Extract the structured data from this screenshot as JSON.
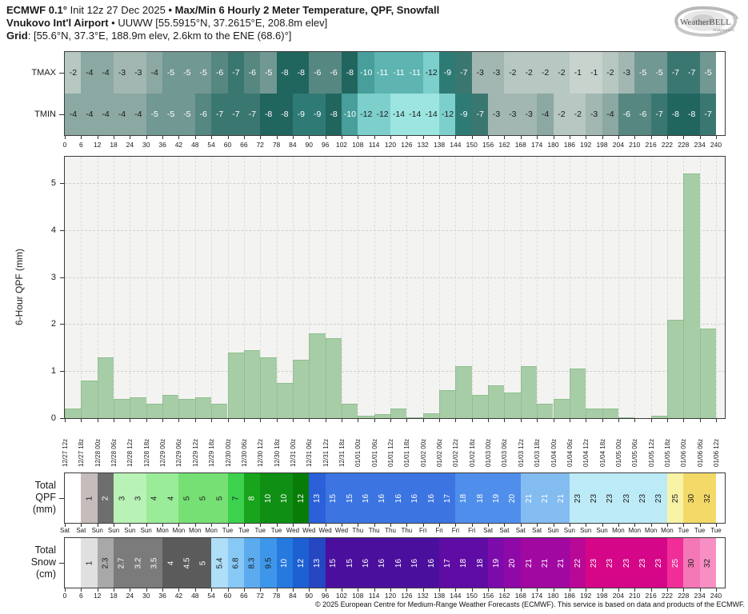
{
  "header": {
    "line1": {
      "bold_left": "ECMWF 0.1°",
      "regular": " Init 12z 27 Dec 2025 ",
      "bold_right": "• Max/Min 6 Hourly 2 Meter Temperature, QPF, Snowfall"
    },
    "line2": {
      "bold": "Vnukovo Int'l Airport",
      "regular": " • UUWW [55.5915°N, 37.2615°E, 208.8m elev]"
    },
    "line3": {
      "bold": "Grid",
      "regular": ": [55.6°N, 37.3°E, 188.9m elev, 2.6km to the ENE (68.6)°]"
    }
  },
  "logo": {
    "brand": "WeatherBELL",
    "sub": "Analytics LLC"
  },
  "footer": "© 2025 European Centre for Medium-Range Weather Forecasts (ECMWF). This service is based on data and products of the ECMWF.",
  "chart_data": [
    {
      "type": "heatmap",
      "name": "temperature",
      "rows": [
        {
          "label": "TMAX",
          "values": [
            -2,
            -4,
            -4,
            -3,
            -3,
            -4,
            -5,
            -5,
            -5,
            -6,
            -7,
            -6,
            -5,
            -8,
            -8,
            -6,
            -6,
            -8,
            -10,
            -11,
            -11,
            -11,
            -12,
            -9,
            -7,
            -3,
            -3,
            -2,
            -2,
            -2,
            -2,
            -1,
            -1,
            -2,
            -3,
            -5,
            -5,
            -7,
            -7,
            -5
          ]
        },
        {
          "label": "TMIN",
          "values": [
            -4,
            -4,
            -4,
            -4,
            -4,
            -5,
            -5,
            -5,
            -6,
            -7,
            -7,
            -7,
            -8,
            -8,
            -9,
            -9,
            -8,
            -10,
            -12,
            -12,
            -14,
            -14,
            -14,
            -12,
            -9,
            -7,
            -3,
            -3,
            -3,
            -4,
            -2,
            -2,
            -3,
            -4,
            -6,
            -6,
            -7,
            -8,
            -8,
            -7
          ]
        }
      ],
      "x_ticks": [
        0,
        6,
        12,
        18,
        24,
        30,
        36,
        42,
        48,
        54,
        60,
        66,
        72,
        78,
        84,
        90,
        96,
        102,
        108,
        114,
        120,
        126,
        132,
        138,
        144,
        150,
        156,
        162,
        168,
        174,
        180,
        186,
        192,
        198,
        204,
        210,
        216,
        222,
        228,
        234,
        240
      ],
      "colormap": {
        "-1": [
          "#c8d3cd",
          "#1a1a1a"
        ],
        "-2": [
          "#b7c7c2",
          "#1a1a1a"
        ],
        "-3": [
          "#a2b7b1",
          "#1a1a1a"
        ],
        "-4": [
          "#8ca8a2",
          "#1a1a1a"
        ],
        "-5": [
          "#729893",
          "#ffffff"
        ],
        "-6": [
          "#568781",
          "#ffffff"
        ],
        "-7": [
          "#3b7771",
          "#ffffff"
        ],
        "-8": [
          "#21655f",
          "#ffffff"
        ],
        "-9": [
          "#2e7b76",
          "#ffffff"
        ],
        "-10": [
          "#479e9a",
          "#ffffff"
        ],
        "-11": [
          "#5db4b1",
          "#ffffff"
        ],
        "-12": [
          "#7dcfcc",
          "#1a1a1a"
        ],
        "-14": [
          "#9ce5e1",
          "#1a1a1a"
        ]
      }
    },
    {
      "type": "bar",
      "name": "qpf-6hour",
      "ylabel": "6-Hour QPF (mm)",
      "ylim": [
        0,
        5.56
      ],
      "yticks": [
        0,
        1,
        2,
        3,
        4,
        5
      ],
      "grid": true,
      "bar_color": "#a6cda6",
      "categories": [
        "12/27 12z",
        "12/27 18z",
        "12/28 00z",
        "12/28 06z",
        "12/28 12z",
        "12/28 18z",
        "12/29 00z",
        "12/29 06z",
        "12/29 12z",
        "12/29 18z",
        "12/30 00z",
        "12/30 06z",
        "12/30 12z",
        "12/30 18z",
        "12/31 00z",
        "12/31 06z",
        "12/31 12z",
        "12/31 18z",
        "01/01 00z",
        "01/01 06z",
        "01/01 12z",
        "01/01 18z",
        "01/02 00z",
        "01/02 06z",
        "01/02 12z",
        "01/02 18z",
        "01/03 00z",
        "01/03 06z",
        "01/03 12z",
        "01/03 18z",
        "01/04 00z",
        "01/04 06z",
        "01/04 12z",
        "01/04 18z",
        "01/05 00z",
        "01/05 06z",
        "01/05 12z",
        "01/05 18z",
        "01/06 00z",
        "01/06 06z",
        "01/06 12z"
      ],
      "values": [
        0.2,
        0.8,
        1.3,
        0.4,
        0.45,
        0.3,
        0.5,
        0.4,
        0.45,
        0.3,
        1.4,
        1.45,
        1.3,
        0.75,
        1.25,
        1.8,
        1.7,
        0.3,
        0.05,
        0.08,
        0.2,
        0.02,
        0.1,
        0.6,
        1.1,
        0.5,
        0.7,
        0.55,
        1.1,
        0.3,
        0.4,
        1.05,
        0.2,
        0.2,
        0.02,
        0,
        0.05,
        2.1,
        5.2,
        1.9
      ]
    },
    {
      "type": "heatmap",
      "name": "total-qpf",
      "label_lines": [
        "Total",
        "QPF",
        "(mm)"
      ],
      "cells": [
        [
          "",
          "#ffffff",
          ""
        ],
        [
          "1",
          "#c7bcbc",
          "#1a1a1a"
        ],
        [
          "2",
          "#6e6e6e",
          "#ffffff"
        ],
        [
          "3",
          "#b8f2b6",
          "#1a1a1a"
        ],
        [
          "3",
          "#b8f2b6",
          "#1a1a1a"
        ],
        [
          "4",
          "#9aec98",
          "#1a1a1a"
        ],
        [
          "4",
          "#9aec98",
          "#1a1a1a"
        ],
        [
          "5",
          "#76e075",
          "#1a1a1a"
        ],
        [
          "5",
          "#76e075",
          "#1a1a1a"
        ],
        [
          "5",
          "#76e075",
          "#1a1a1a"
        ],
        [
          "7",
          "#3dd14d",
          "#1a1a1a"
        ],
        [
          "8",
          "#18a51d",
          "#ffffff"
        ],
        [
          "10",
          "#0f9014",
          "#ffffff"
        ],
        [
          "10",
          "#0f9014",
          "#ffffff"
        ],
        [
          "12",
          "#077d08",
          "#ffffff"
        ],
        [
          "13",
          "#2b60d8",
          "#ffffff"
        ],
        [
          "15",
          "#3c75e2",
          "#ffffff"
        ],
        [
          "15",
          "#3c75e2",
          "#ffffff"
        ],
        [
          "16",
          "#3c75e2",
          "#ffffff"
        ],
        [
          "16",
          "#3c75e2",
          "#ffffff"
        ],
        [
          "16",
          "#3c75e2",
          "#ffffff"
        ],
        [
          "16",
          "#3c75e2",
          "#ffffff"
        ],
        [
          "16",
          "#3c75e2",
          "#ffffff"
        ],
        [
          "17",
          "#3c75e2",
          "#ffffff"
        ],
        [
          "18",
          "#4f8eeb",
          "#ffffff"
        ],
        [
          "18",
          "#4f8eeb",
          "#ffffff"
        ],
        [
          "19",
          "#4f8eeb",
          "#ffffff"
        ],
        [
          "20",
          "#4f8eeb",
          "#ffffff"
        ],
        [
          "21",
          "#83bcf1",
          "#ffffff"
        ],
        [
          "21",
          "#83bcf1",
          "#ffffff"
        ],
        [
          "21",
          "#83bcf1",
          "#ffffff"
        ],
        [
          "23",
          "#bdeaf7",
          "#1a1a1a"
        ],
        [
          "23",
          "#bdeaf7",
          "#1a1a1a"
        ],
        [
          "23",
          "#bdeaf7",
          "#1a1a1a"
        ],
        [
          "23",
          "#bdeaf7",
          "#1a1a1a"
        ],
        [
          "23",
          "#bdeaf7",
          "#1a1a1a"
        ],
        [
          "23",
          "#bdeaf7",
          "#1a1a1a"
        ],
        [
          "25",
          "#f9f3a8",
          "#1a1a1a"
        ],
        [
          "30",
          "#f3da68",
          "#1a1a1a"
        ],
        [
          "32",
          "#f3da68",
          "#1a1a1a"
        ]
      ],
      "tick_labels": [
        "Sat",
        "Sat",
        "Sun",
        "Sun",
        "Sun",
        "Sun",
        "Mon",
        "Mon",
        "Mon",
        "Mon",
        "Tue",
        "Tue",
        "Tue",
        "Tue",
        "Wed",
        "Wed",
        "Wed",
        "Wed",
        "Thu",
        "Thu",
        "Thu",
        "Thu",
        "Fri",
        "Fri",
        "Fri",
        "Fri",
        "Sat",
        "Sat",
        "Sat",
        "Sat",
        "Sun",
        "Sun",
        "Sun",
        "Sun",
        "Mon",
        "Mon",
        "Mon",
        "Mon",
        "Tue",
        "Tue",
        "Tue"
      ]
    },
    {
      "type": "heatmap",
      "name": "total-snow",
      "label_lines": [
        "Total",
        "Snow",
        "(cm)"
      ],
      "cells": [
        [
          "",
          "#ffffff",
          ""
        ],
        [
          "1",
          "#e0e0e0",
          "#1a1a1a"
        ],
        [
          "2.3",
          "#a8a8a8",
          "#1a1a1a"
        ],
        [
          "2.7",
          "#7b7b7b",
          "#ffffff"
        ],
        [
          "3.2",
          "#7b7b7b",
          "#ffffff"
        ],
        [
          "3.5",
          "#7b7b7b",
          "#ffffff"
        ],
        [
          "4",
          "#5b5b5b",
          "#ffffff"
        ],
        [
          "4.5",
          "#5b5b5b",
          "#ffffff"
        ],
        [
          "5",
          "#5b5b5b",
          "#ffffff"
        ],
        [
          "5.4",
          "#aedef8",
          "#1a1a1a"
        ],
        [
          "6.8",
          "#88c8f5",
          "#1a1a1a"
        ],
        [
          "8.3",
          "#5cabef",
          "#1a1a1a"
        ],
        [
          "9.5",
          "#3d96e9",
          "#1a1a1a"
        ],
        [
          "10",
          "#2679df",
          "#ffffff"
        ],
        [
          "12",
          "#1d60d3",
          "#ffffff"
        ],
        [
          "13",
          "#2547c1",
          "#ffffff"
        ],
        [
          "15",
          "#4a0f9d",
          "#ffffff"
        ],
        [
          "15",
          "#4a0f9d",
          "#ffffff"
        ],
        [
          "16",
          "#4a0f9d",
          "#ffffff"
        ],
        [
          "16",
          "#4a0f9d",
          "#ffffff"
        ],
        [
          "16",
          "#4a0f9d",
          "#ffffff"
        ],
        [
          "16",
          "#4a0f9d",
          "#ffffff"
        ],
        [
          "16",
          "#4a0f9d",
          "#ffffff"
        ],
        [
          "17",
          "#5e0ca4",
          "#ffffff"
        ],
        [
          "18",
          "#5e0ca4",
          "#ffffff"
        ],
        [
          "18",
          "#5e0ca4",
          "#ffffff"
        ],
        [
          "19",
          "#7d0bab",
          "#ffffff"
        ],
        [
          "20",
          "#8e09a7",
          "#ffffff"
        ],
        [
          "21",
          "#a108a1",
          "#ffffff"
        ],
        [
          "21",
          "#a108a1",
          "#ffffff"
        ],
        [
          "21",
          "#a108a1",
          "#ffffff"
        ],
        [
          "22",
          "#b90796",
          "#ffffff"
        ],
        [
          "23",
          "#d50687",
          "#ffffff"
        ],
        [
          "23",
          "#d50687",
          "#ffffff"
        ],
        [
          "23",
          "#d50687",
          "#ffffff"
        ],
        [
          "23",
          "#d50687",
          "#ffffff"
        ],
        [
          "23",
          "#d50687",
          "#ffffff"
        ],
        [
          "25",
          "#f02d98",
          "#ffffff"
        ],
        [
          "30",
          "#f478b6",
          "#1a1a1a"
        ],
        [
          "32",
          "#f88fc4",
          "#1a1a1a"
        ]
      ],
      "tick_labels": [
        0,
        6,
        12,
        18,
        24,
        30,
        36,
        42,
        48,
        54,
        60,
        66,
        72,
        78,
        84,
        90,
        96,
        102,
        108,
        114,
        120,
        126,
        132,
        138,
        144,
        150,
        156,
        162,
        168,
        174,
        180,
        186,
        192,
        198,
        204,
        210,
        216,
        222,
        228,
        234,
        240
      ]
    }
  ]
}
